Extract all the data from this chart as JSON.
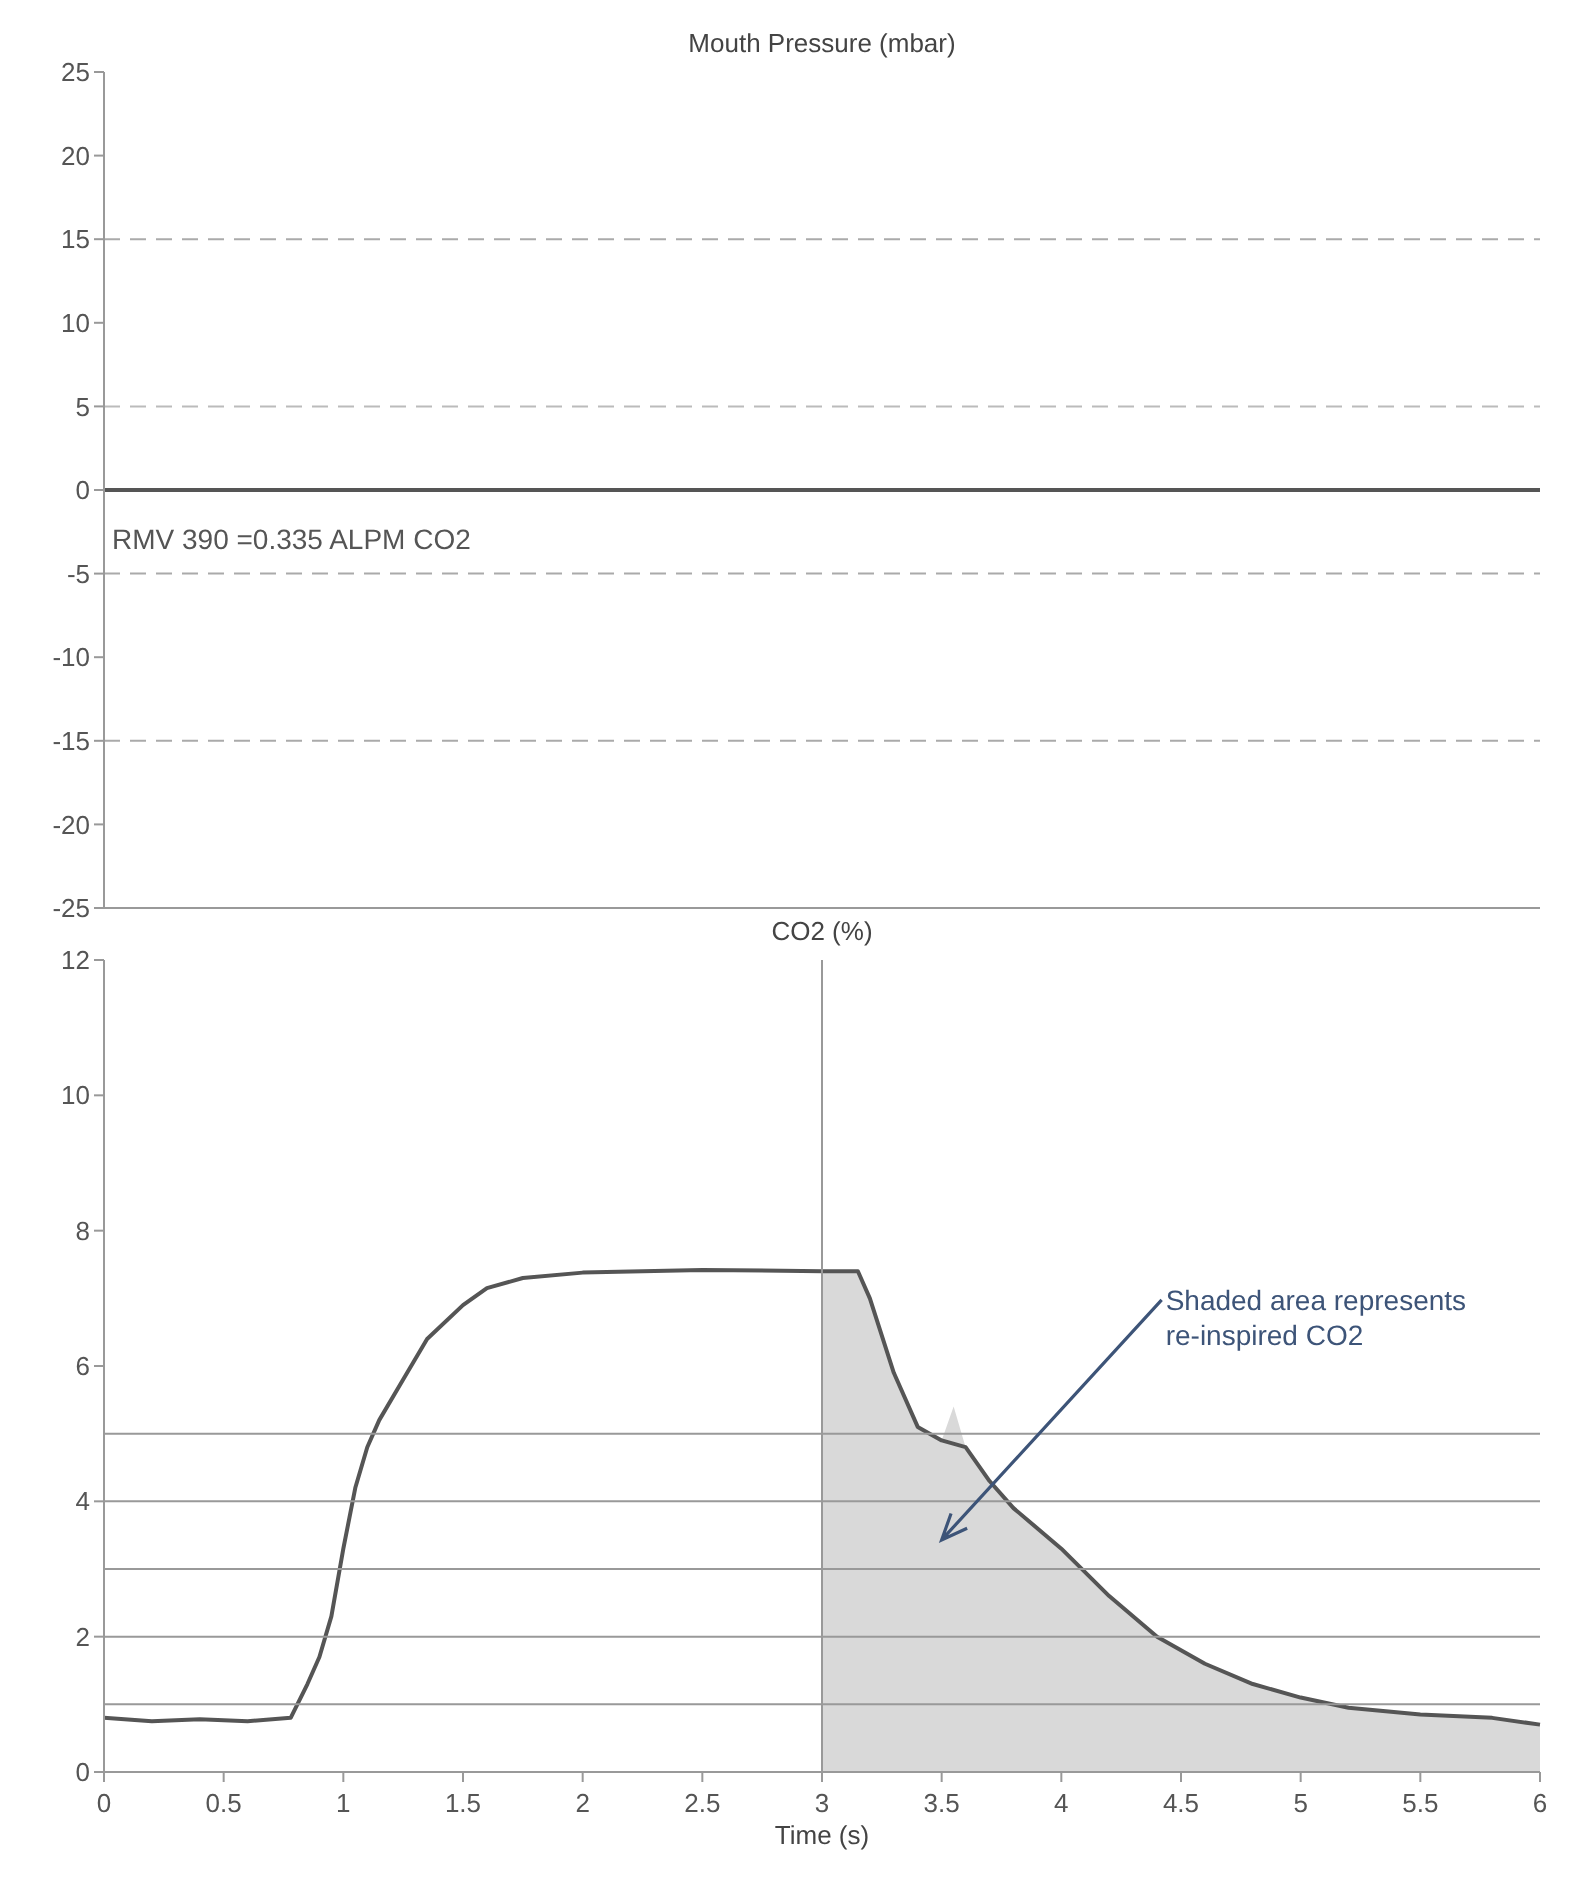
{
  "chart_data": [
    {
      "type": "line",
      "title": "Mouth Pressure (mbar)",
      "xlim": [
        0,
        6
      ],
      "ylim": [
        -25,
        25
      ],
      "yticks": [
        -25,
        -20,
        -15,
        -10,
        -5,
        0,
        5,
        10,
        15,
        20,
        25
      ],
      "tick_labels": "y",
      "grid": false,
      "series": [
        {
          "color": "#555555",
          "x": [
            0,
            1,
            2,
            3,
            4,
            5,
            6
          ],
          "values": [
            0,
            0,
            0,
            0,
            0,
            0,
            0
          ]
        }
      ],
      "ref_lines": [
        {
          "axis": "y",
          "value": 15,
          "line_style": "dashed",
          "color": "#aaaaaa"
        },
        {
          "axis": "y",
          "value": 5,
          "line_style": "dashed",
          "color": "#bbbbbb"
        },
        {
          "axis": "y",
          "value": -5,
          "line_style": "dashed",
          "color": "#aaaaaa"
        },
        {
          "axis": "y",
          "value": -15,
          "line_style": "dashed",
          "color": "#aaaaaa"
        }
      ],
      "annotations": [
        "RMV 390 =0.335 ALPM CO2"
      ]
    },
    {
      "type": "line",
      "title": "CO2 (%)",
      "xlabel": "Time (s)",
      "xlim": [
        0,
        6
      ],
      "ylim": [
        0,
        12
      ],
      "xticks": [
        0,
        0.5,
        1,
        1.5,
        2,
        2.5,
        3,
        3.5,
        4,
        4.5,
        5,
        5.5,
        6
      ],
      "yticks": [
        0,
        2,
        4,
        6,
        8,
        10,
        12
      ],
      "grid": false,
      "series": [
        {
          "type": "area",
          "color": "#d9d9d9",
          "x": [
            3,
            3.15,
            3.2,
            3.3,
            3.4,
            3.5,
            3.55,
            3.6,
            3.7,
            3.8,
            4,
            4.2,
            4.4,
            4.6,
            4.8,
            5,
            5.2,
            5.5,
            5.8,
            6
          ],
          "values": [
            7.4,
            7.4,
            7,
            5.9,
            5.1,
            4.9,
            5.4,
            4.8,
            4.3,
            3.9,
            3.3,
            2.6,
            2,
            1.6,
            1.3,
            1.1,
            0.95,
            0.85,
            0.8,
            0.7
          ]
        },
        {
          "color": "#555555",
          "x": [
            0,
            0.2,
            0.4,
            0.6,
            0.78,
            0.85,
            0.9,
            0.95,
            1,
            1.05,
            1.1,
            1.15,
            1.25,
            1.35,
            1.5,
            1.6,
            1.75,
            2,
            2.5,
            3,
            3.15,
            3.2,
            3.3,
            3.4,
            3.5,
            3.6,
            3.7,
            3.8,
            4,
            4.2,
            4.4,
            4.6,
            4.8,
            5,
            5.2,
            5.5,
            5.8,
            6
          ],
          "values": [
            0.8,
            0.75,
            0.78,
            0.75,
            0.8,
            1.3,
            1.7,
            2.3,
            3.3,
            4.2,
            4.8,
            5.2,
            5.8,
            6.4,
            6.9,
            7.15,
            7.3,
            7.38,
            7.42,
            7.4,
            7.4,
            7,
            5.9,
            5.1,
            4.9,
            4.8,
            4.3,
            3.9,
            3.3,
            2.6,
            2,
            1.6,
            1.3,
            1.1,
            0.95,
            0.85,
            0.8,
            0.7
          ]
        }
      ],
      "ref_lines": [
        {
          "axis": "y",
          "value": 1,
          "color": "#999999"
        },
        {
          "axis": "y",
          "value": 2,
          "color": "#999999"
        },
        {
          "axis": "y",
          "value": 3,
          "color": "#999999"
        },
        {
          "axis": "y",
          "value": 4,
          "color": "#999999"
        },
        {
          "axis": "y",
          "value": 5,
          "color": "#999999"
        },
        {
          "axis": "x",
          "value": 3,
          "color": "#999999"
        }
      ],
      "annotations": [
        "Shaded area represents re-inspired CO2"
      ]
    }
  ]
}
